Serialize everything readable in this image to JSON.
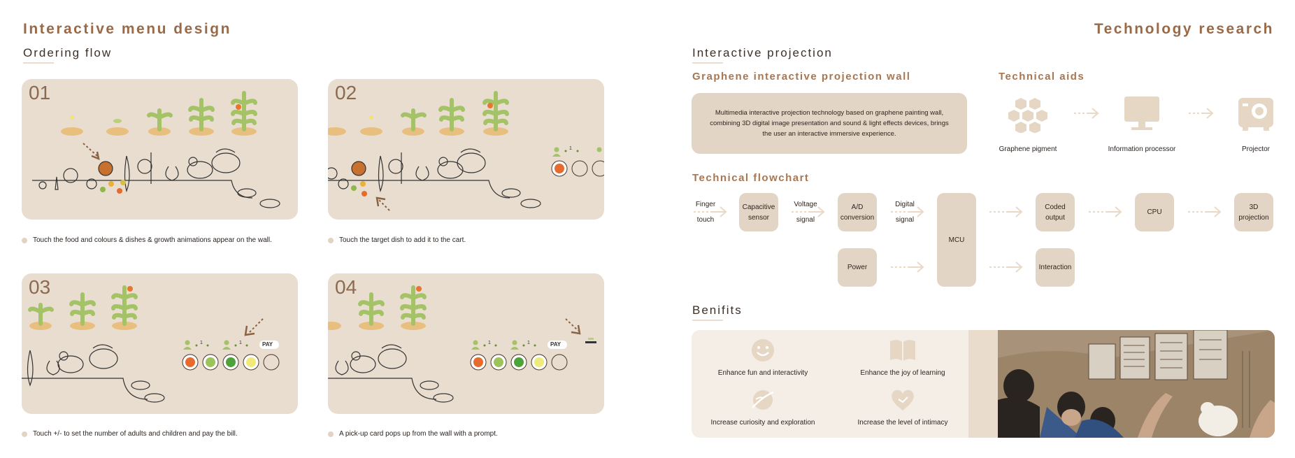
{
  "left_title": "Interactive menu design",
  "right_title": "Technology research",
  "ordering": {
    "heading": "Ordering flow",
    "steps": [
      {
        "num": "01",
        "caption": "Touch the food and colours & dishes & growth animations appear on the wall."
      },
      {
        "num": "02",
        "caption": "Touch the target dish to add it to the cart."
      },
      {
        "num": "03",
        "caption": "Touch +/- to set the number of adults and children and pay the bill."
      },
      {
        "num": "04",
        "caption": "A pick-up card pops up from the wall with a prompt."
      }
    ],
    "counter_value": "1",
    "pay_label": "PAY"
  },
  "projection": {
    "heading": "Interactive projection",
    "graphene_title": "Graphene interactive projection wall",
    "graphene_text": "Multimedia interactive projection technology based on graphene painting wall, combining 3D digital image presentation and sound & light effects devices, brings the user an interactive immersive experience.",
    "aids_title": "Technical aids",
    "aids": [
      {
        "label": "Graphene pigment",
        "icon": "hexagon-cluster-icon"
      },
      {
        "label": "Information processor",
        "icon": "monitor-icon"
      },
      {
        "label": "Projector",
        "icon": "projector-icon"
      }
    ]
  },
  "flowchart": {
    "title": "Technical flowchart",
    "labels": {
      "finger": "Finger",
      "touch": "touch",
      "voltage": "Voltage",
      "signal": "signal",
      "digital": "Digital",
      "signal2": "signal"
    },
    "nodes": {
      "capacitive": "Capacitive sensor",
      "ad": "A/D conversion",
      "mcu": "MCU",
      "coded": "Coded output",
      "cpu": "CPU",
      "projection3d": "3D projection",
      "power": "Power",
      "interaction": "Interaction"
    }
  },
  "benefits": {
    "heading": "Benifits",
    "items": [
      {
        "label": "Enhance fun and interactivity",
        "icon": "smile-icon"
      },
      {
        "label": "Enhance the joy of learning",
        "icon": "book-icon"
      },
      {
        "label": "Increase curiosity and exploration",
        "icon": "planet-icon"
      },
      {
        "label": "Increase the level of intimacy",
        "icon": "heart-icon"
      }
    ]
  },
  "colors": {
    "accent": "#9a6a48",
    "card": "#e9ddcf",
    "node": "#e3d5c5"
  }
}
